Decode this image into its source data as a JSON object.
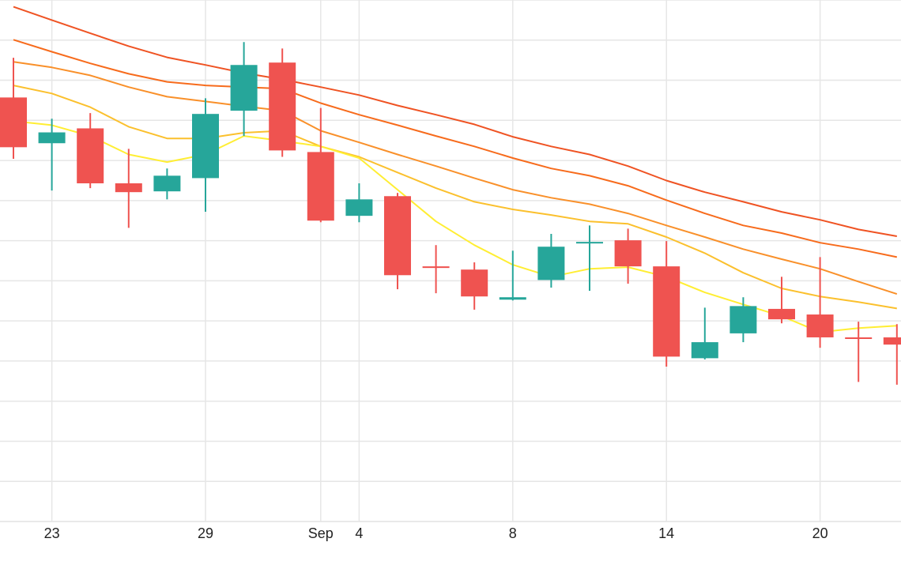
{
  "chart_data": {
    "type": "candlestick",
    "categories": [
      null,
      "23",
      null,
      null,
      null,
      "29",
      null,
      null,
      "Sep",
      "4",
      null,
      null,
      null,
      "8",
      null,
      null,
      null,
      "14",
      null,
      null,
      null,
      "20",
      null,
      null
    ],
    "open": [
      10.57,
      9.43,
      9.8,
      8.43,
      8.23,
      8.56,
      10.24,
      11.44,
      9.21,
      7.62,
      8.11,
      6.36,
      6.28,
      5.53,
      6.02,
      6.95,
      7.01,
      6.36,
      4.07,
      4.69,
      5.3,
      5.16,
      4.59,
      4.59
    ],
    "high": [
      11.56,
      10.04,
      10.18,
      9.29,
      8.8,
      10.55,
      11.95,
      11.79,
      10.31,
      8.43,
      8.19,
      6.89,
      6.46,
      6.75,
      7.17,
      7.38,
      7.3,
      6.99,
      5.33,
      5.59,
      6.1,
      6.59,
      4.98,
      4.92
    ],
    "low": [
      9.04,
      8.25,
      8.31,
      7.32,
      8.03,
      7.72,
      9.61,
      9.09,
      7.46,
      7.46,
      5.79,
      5.69,
      5.28,
      5.51,
      5.83,
      5.75,
      5.93,
      3.86,
      4.04,
      4.47,
      4.94,
      4.33,
      3.48,
      3.41
    ],
    "close": [
      9.33,
      9.7,
      8.43,
      8.21,
      8.62,
      10.16,
      11.38,
      9.25,
      7.5,
      8.03,
      6.14,
      6.32,
      5.61,
      5.59,
      6.85,
      6.97,
      6.36,
      4.11,
      4.47,
      5.37,
      5.04,
      4.59,
      4.55,
      4.41
    ],
    "up_color": "#26a69a",
    "down_color": "#ef5350",
    "series": [
      {
        "color": "#ef5323",
        "values": [
          12.83,
          12.5,
          12.17,
          11.85,
          11.57,
          11.38,
          11.18,
          11.02,
          10.83,
          10.63,
          10.37,
          10.14,
          9.9,
          9.59,
          9.35,
          9.15,
          8.86,
          8.5,
          8.21,
          7.97,
          7.72,
          7.52,
          7.28,
          7.11
        ]
      },
      {
        "color": "#f76b1c",
        "values": [
          12.01,
          11.71,
          11.42,
          11.16,
          10.96,
          10.87,
          10.83,
          10.79,
          10.43,
          10.14,
          9.88,
          9.61,
          9.35,
          9.06,
          8.8,
          8.62,
          8.37,
          8.01,
          7.68,
          7.38,
          7.19,
          6.95,
          6.79,
          6.59
        ]
      },
      {
        "color": "#f9902a",
        "values": [
          11.46,
          11.32,
          11.12,
          10.83,
          10.59,
          10.47,
          10.35,
          10.24,
          9.74,
          9.45,
          9.15,
          8.86,
          8.56,
          8.27,
          8.07,
          7.91,
          7.68,
          7.38,
          7.09,
          6.79,
          6.54,
          6.3,
          5.98,
          5.67
        ]
      },
      {
        "color": "#fbc02d",
        "values": [
          10.87,
          10.67,
          10.33,
          9.84,
          9.55,
          9.55,
          9.69,
          9.74,
          9.35,
          9.09,
          8.7,
          8.31,
          7.97,
          7.78,
          7.64,
          7.48,
          7.42,
          7.09,
          6.69,
          6.2,
          5.81,
          5.61,
          5.47,
          5.31
        ]
      },
      {
        "color": "#ffee33",
        "values": [
          9.98,
          9.88,
          9.61,
          9.15,
          8.96,
          9.15,
          9.61,
          9.49,
          9.35,
          9.06,
          8.27,
          7.48,
          6.89,
          6.4,
          6.1,
          6.3,
          6.34,
          6.1,
          5.71,
          5.41,
          5.12,
          4.72,
          4.82,
          4.88
        ]
      }
    ],
    "ylim": [
      0,
      13
    ],
    "yticks": [
      0,
      1,
      2,
      3,
      4,
      5,
      6,
      7,
      8,
      9,
      10,
      11,
      12,
      13
    ],
    "ytick_labels": false,
    "grid": true
  }
}
